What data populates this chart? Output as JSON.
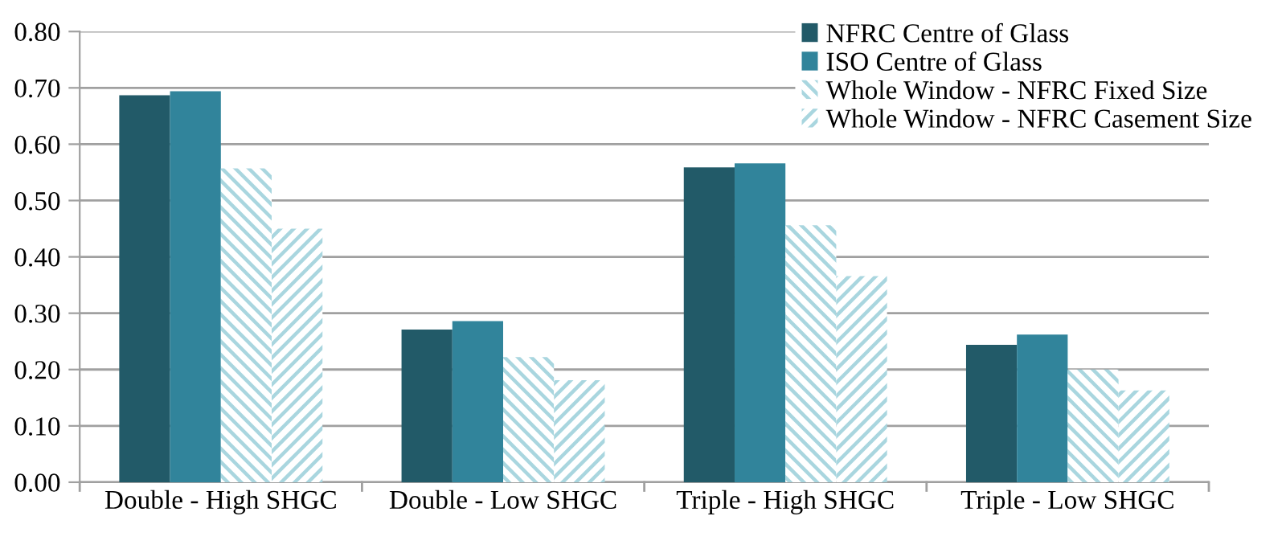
{
  "chart_data": {
    "type": "bar",
    "categories": [
      "Double - High SHGC",
      "Double - Low SHGC",
      "Triple - High SHGC",
      "Triple - Low SHGC"
    ],
    "series": [
      {
        "name": "NFRC Centre of Glass",
        "color": "#225a68",
        "values": [
          0.687,
          0.271,
          0.559,
          0.244
        ]
      },
      {
        "name": "ISO Centre of Glass",
        "color": "#31849b",
        "values": [
          0.694,
          0.286,
          0.566,
          0.262
        ]
      },
      {
        "name": "Whole Window - NFRC Fixed Size",
        "color": "#a9d6df",
        "values": [
          0.557,
          0.222,
          0.456,
          0.2
        ]
      },
      {
        "name": "Whole Window - NFRC Casement Size",
        "color": "#a9d6df",
        "values": [
          0.45,
          0.181,
          0.366,
          0.163
        ]
      }
    ],
    "ylim": [
      0,
      0.8
    ],
    "yticks": [
      {
        "value": 0,
        "label": "0.00"
      },
      {
        "value": 0.1,
        "label": "0.10"
      },
      {
        "value": 0.2,
        "label": "0.20"
      },
      {
        "value": 0.3,
        "label": "0.30"
      },
      {
        "value": 0.4,
        "label": "0.40"
      },
      {
        "value": 0.5,
        "label": "0.50"
      },
      {
        "value": 0.6,
        "label": "0.60"
      },
      {
        "value": 0.7,
        "label": "0.70"
      },
      {
        "value": 0.8,
        "label": "0.80"
      }
    ],
    "grid": "y",
    "legend": "top right"
  }
}
